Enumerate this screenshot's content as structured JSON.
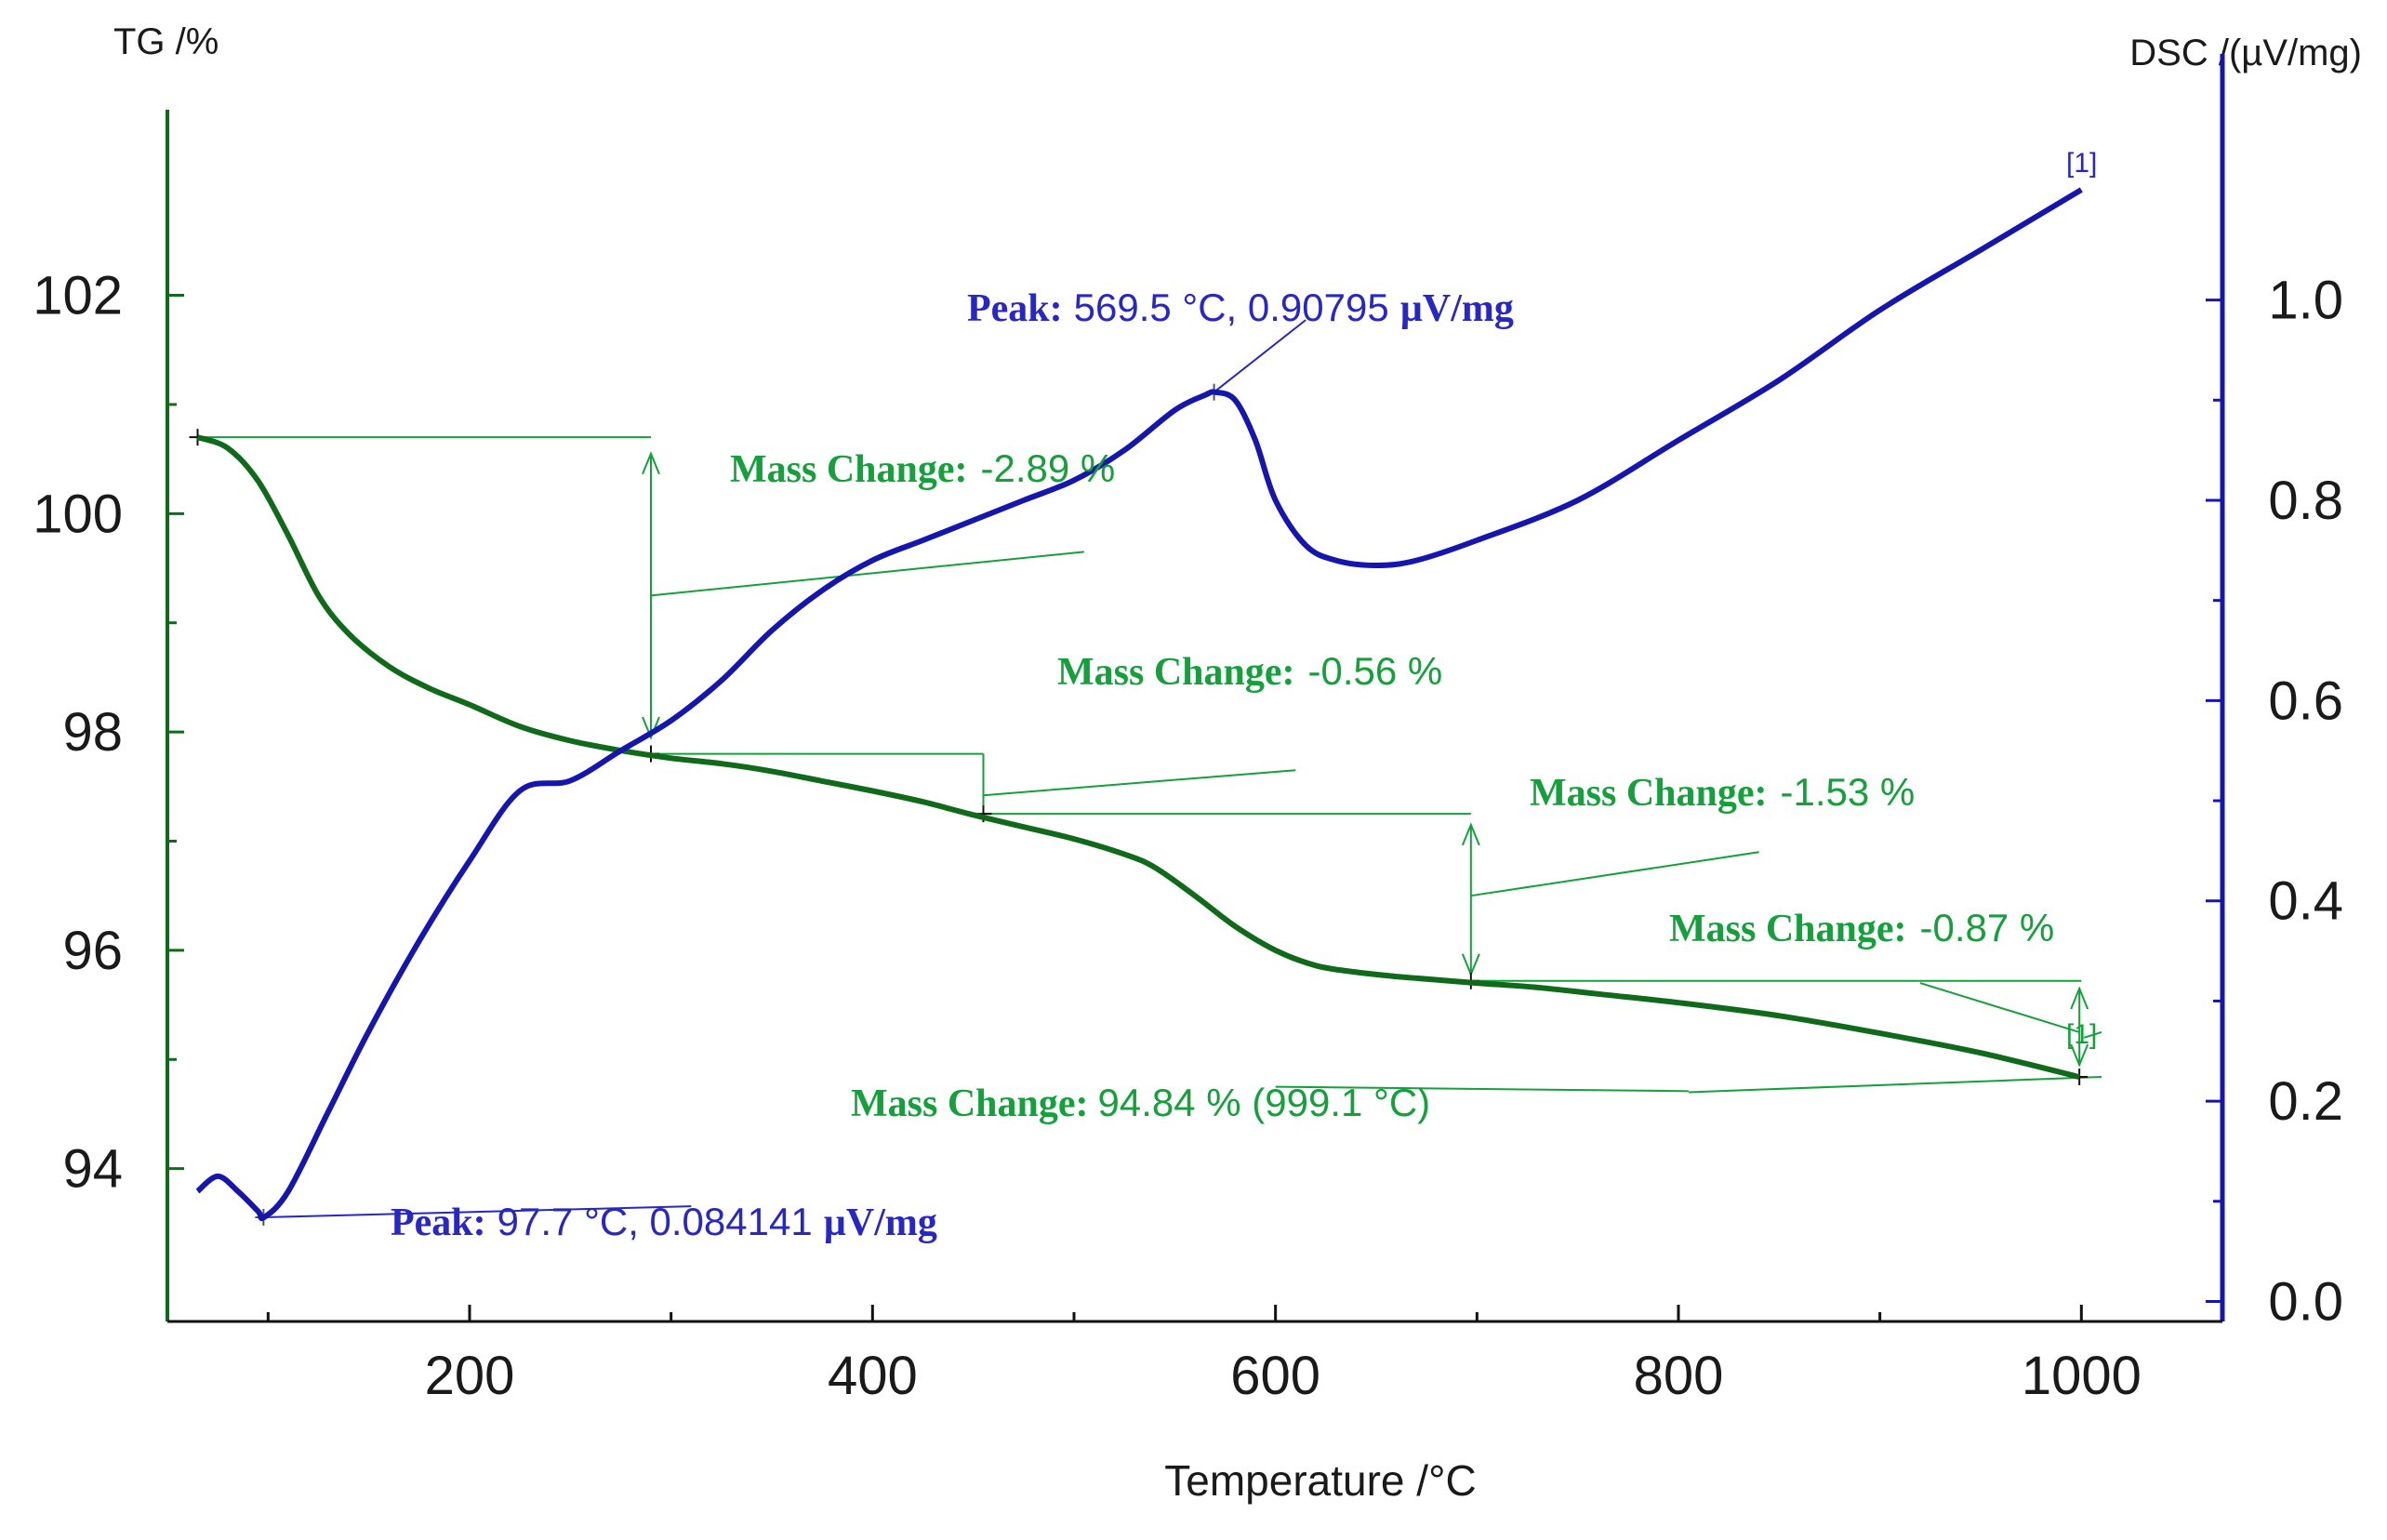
{
  "chart_data": {
    "type": "line",
    "xlabel": "Temperature /°C",
    "ylabel_left": "TG /%",
    "ylabel_right": "DSC /(µV/mg)",
    "xlim": [
      50,
      1070
    ],
    "ylim_left": [
      92.6,
      103.7
    ],
    "ylim_right": [
      -0.02,
      1.19
    ],
    "x_ticks": [
      200,
      400,
      600,
      800,
      1000
    ],
    "y_left_ticks": [
      94,
      96,
      98,
      100,
      102
    ],
    "y_right_ticks": [
      0.0,
      0.2,
      0.4,
      0.6,
      0.8,
      1.0
    ],
    "y_right_tick_labels": [
      "0.0",
      "0.2",
      "0.4",
      "0.6",
      "0.8",
      "1.0"
    ],
    "grid": false,
    "colors": {
      "tg": "#0f6b1a",
      "dsc": "#1515b0",
      "tg_ann": "#14a03a",
      "dsc_ann": "#2727c8"
    },
    "series": [
      {
        "axis": "left",
        "color": "#0f6b1a",
        "x": [
          65,
          80,
          95,
          110,
          125,
          140,
          160,
          180,
          200,
          225,
          250,
          275,
          300,
          325,
          350,
          375,
          400,
          425,
          450,
          475,
          500,
          525,
          540,
          560,
          580,
          600,
          620,
          640,
          660,
          680,
          700,
          730,
          760,
          800,
          850,
          900,
          950,
          999
        ],
        "y": [
          100.7,
          100.6,
          100.3,
          99.8,
          99.25,
          98.9,
          98.6,
          98.4,
          98.25,
          98.05,
          97.92,
          97.83,
          97.76,
          97.71,
          97.64,
          97.55,
          97.46,
          97.36,
          97.24,
          97.13,
          97.02,
          96.88,
          96.76,
          96.5,
          96.22,
          96.0,
          95.86,
          95.8,
          95.76,
          95.73,
          95.7,
          95.66,
          95.6,
          95.52,
          95.4,
          95.24,
          95.06,
          94.84
        ]
      },
      {
        "axis": "right",
        "color": "#1515b0",
        "x": [
          65,
          75,
          85,
          95,
          98,
          110,
          130,
          150,
          175,
          200,
          225,
          250,
          275,
          300,
          325,
          350,
          375,
          400,
          425,
          450,
          475,
          500,
          525,
          550,
          565,
          570,
          580,
          590,
          600,
          615,
          630,
          650,
          670,
          700,
          750,
          800,
          850,
          900,
          950,
          1000
        ],
        "y": [
          0.11,
          0.125,
          0.11,
          0.09,
          0.084,
          0.11,
          0.19,
          0.27,
          0.36,
          0.44,
          0.51,
          0.52,
          0.55,
          0.58,
          0.62,
          0.67,
          0.71,
          0.74,
          0.76,
          0.78,
          0.8,
          0.82,
          0.85,
          0.89,
          0.905,
          0.908,
          0.9,
          0.86,
          0.8,
          0.755,
          0.74,
          0.735,
          0.74,
          0.76,
          0.8,
          0.86,
          0.92,
          0.99,
          1.05,
          1.11
        ]
      }
    ],
    "annotations": {
      "tg_steps": [
        {
          "bold": "Mass Change:",
          "value": "-2.89 %"
        },
        {
          "bold": "Mass Change:",
          "value": "-0.56 %"
        },
        {
          "bold": "Mass Change:",
          "value": "-1.53 %"
        },
        {
          "bold": "Mass Change:",
          "value": "-0.87 %"
        }
      ],
      "tg_residual": {
        "bold": "Mass Change:",
        "value": "94.84 % (999.1 °C)"
      },
      "dsc_peaks": [
        {
          "bold": "Peak:",
          "value": "569.5 °C, 0.90795",
          "unit": "µV/mg"
        },
        {
          "bold": "Peak:",
          "value": "97.7 °C, 0.084141",
          "unit": "µV/mg"
        }
      ],
      "curve_markers": [
        "[1]",
        "[1]"
      ]
    }
  }
}
